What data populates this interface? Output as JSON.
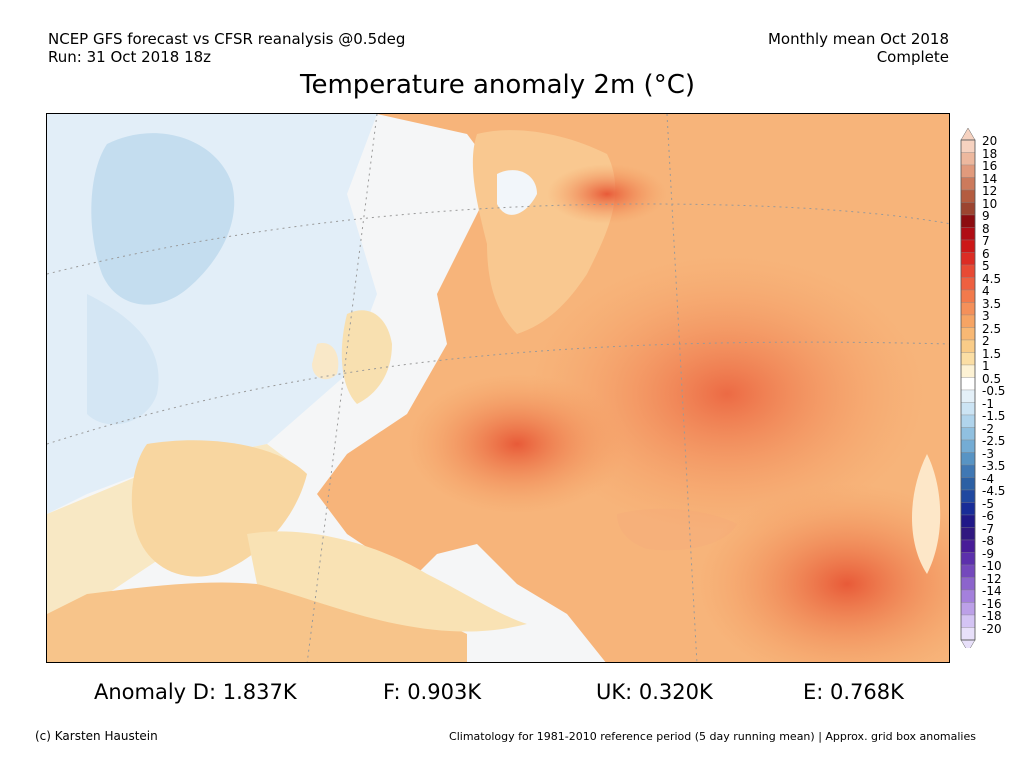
{
  "header": {
    "line1_left": "NCEP GFS forecast vs CFSR reanalysis @0.5deg",
    "line2_left": "Run: 31 Oct 2018 18z",
    "line1_right": "Monthly mean Oct 2018",
    "line2_right": "Complete"
  },
  "title": "Temperature anomaly 2m (°C)",
  "colorbar": {
    "labels": [
      "20",
      "18",
      "16",
      "14",
      "12",
      "10",
      "9",
      "8",
      "7",
      "6",
      "5",
      "4.5",
      "4",
      "3.5",
      "3",
      "2.5",
      "2",
      "1.5",
      "1",
      "0.5",
      "-0.5",
      "-1",
      "-1.5",
      "-2",
      "-2.5",
      "-3",
      "-3.5",
      "-4",
      "-4.5",
      "-5",
      "-6",
      "-7",
      "-8",
      "-9",
      "-10",
      "-12",
      "-14",
      "-16",
      "-18",
      "-20"
    ],
    "colors": [
      "#f6d2c0",
      "#edb89e",
      "#e19a7c",
      "#cc7a5c",
      "#b45c40",
      "#9c4430",
      "#8c0c10",
      "#b00c14",
      "#cc1818",
      "#dc2c24",
      "#e84a34",
      "#ee6040",
      "#f27a4c",
      "#f4905a",
      "#f6a464",
      "#f8b874",
      "#f9cc88",
      "#fbdea4",
      "#fdf2d4",
      "#ffffff",
      "#e4f0f8",
      "#cce4f4",
      "#b0d4ec",
      "#90c0e0",
      "#74acd4",
      "#5894c4",
      "#4078b4",
      "#2c60a4",
      "#2048a0",
      "#182c98",
      "#201888",
      "#301880",
      "#481c98",
      "#5c30ac",
      "#7448bc",
      "#8c64cc",
      "#a480dc",
      "#bca0e8",
      "#d4c4f4",
      "#e8e0fa"
    ]
  },
  "stats": {
    "d": "Anomaly D: 1.837K",
    "f": "F: 0.903K",
    "uk": "UK: 0.320K",
    "e": "E: 0.768K"
  },
  "footer": {
    "left": "(c) Karsten Haustein",
    "right": "Climatology for 1981-2010 reference period (5 day running mean) | Approx. grid box anomalies"
  }
}
